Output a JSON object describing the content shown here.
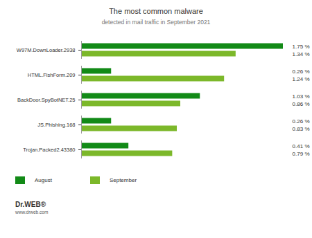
{
  "chart_data": {
    "type": "bar",
    "title": "The most common malware",
    "subtitle": "detected in mail traffic in September 2021",
    "orientation": "horizontal",
    "categories": [
      "W97M.DownLoader.2938",
      "HTML.FishForm.209",
      "BackDoor.SpyBotNET.25",
      "JS.Phishing.168",
      "Trojan.Packed2.43380"
    ],
    "series": [
      {
        "name": "August",
        "color": "#128a17",
        "values": [
          1.75,
          0.26,
          1.03,
          0.26,
          0.41
        ],
        "value_labels": [
          "1.75 %",
          "0.26 %",
          "1.03 %",
          "0.26 %",
          "0.41 %"
        ]
      },
      {
        "name": "September",
        "color": "#7cb82a",
        "values": [
          1.34,
          1.24,
          0.86,
          0.83,
          0.79
        ],
        "value_labels": [
          "1.34 %",
          "1.24 %",
          "0.86 %",
          "0.83 %",
          "0.79 %"
        ]
      }
    ],
    "data_labels": true,
    "tick_labels": "y",
    "legend": "bottom-left",
    "annotations": [
      "Dr.WEB®",
      "www.drweb.com"
    ]
  }
}
